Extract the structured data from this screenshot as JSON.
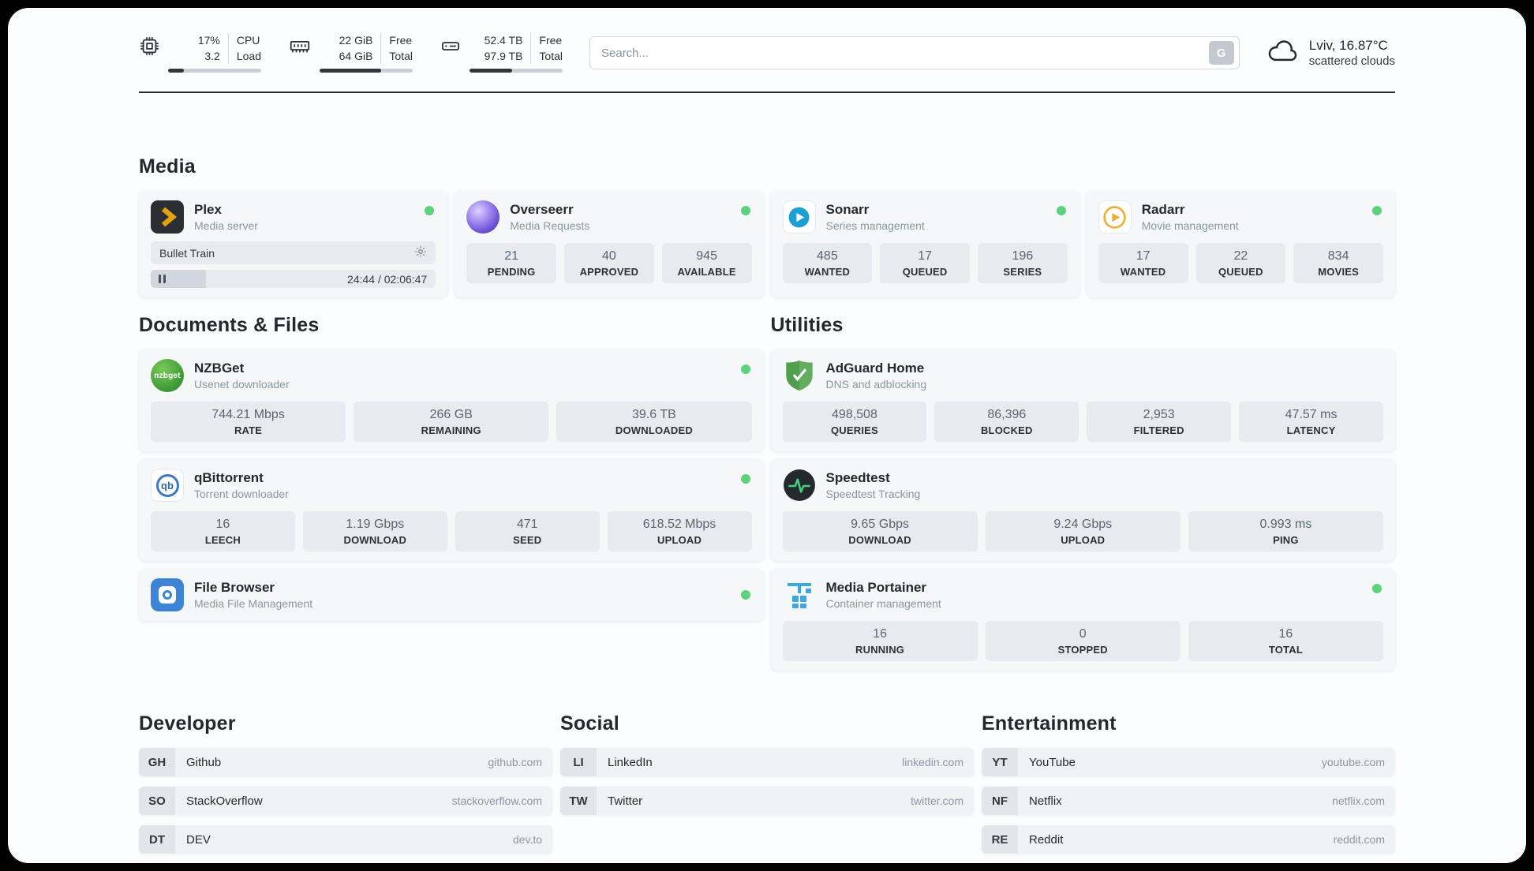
{
  "colors": {
    "status_online": "#5bd37d",
    "accent_dark": "#23292f",
    "card_bg": "#f5f7f9",
    "tile_bg": "#e7ebf0"
  },
  "topbar": {
    "cpu": {
      "value_top": "17%",
      "value_bottom": "3.2",
      "label_top": "CPU",
      "label_bottom": "Load",
      "bar_percent": 17
    },
    "ram": {
      "value_top": "22 GiB",
      "value_bottom": "64 GiB",
      "label_top": "Free",
      "label_bottom": "Total",
      "bar_percent": 66
    },
    "disk": {
      "value_top": "52.4 TB",
      "value_bottom": "97.9 TB",
      "label_top": "Free",
      "label_bottom": "Total",
      "bar_percent": 46
    },
    "search": {
      "placeholder": "Search...",
      "button_label": "G"
    },
    "weather": {
      "location": "Lviv, 16.87°C",
      "condition": "scattered clouds"
    }
  },
  "sections": {
    "media": "Media",
    "documents": "Documents & Files",
    "utilities": "Utilities",
    "developer": "Developer",
    "social": "Social",
    "entertainment": "Entertainment"
  },
  "apps": {
    "plex": {
      "name": "Plex",
      "subtitle": "Media server",
      "now_playing": "Bullet Train",
      "time": "24:44 / 02:06:47",
      "progress_percent": 19.5
    },
    "overseerr": {
      "name": "Overseerr",
      "subtitle": "Media Requests",
      "stats": [
        {
          "value": "21",
          "label": "PENDING"
        },
        {
          "value": "40",
          "label": "APPROVED"
        },
        {
          "value": "945",
          "label": "AVAILABLE"
        }
      ]
    },
    "sonarr": {
      "name": "Sonarr",
      "subtitle": "Series management",
      "stats": [
        {
          "value": "485",
          "label": "WANTED"
        },
        {
          "value": "17",
          "label": "QUEUED"
        },
        {
          "value": "196",
          "label": "SERIES"
        }
      ]
    },
    "radarr": {
      "name": "Radarr",
      "subtitle": "Movie management",
      "stats": [
        {
          "value": "17",
          "label": "WANTED"
        },
        {
          "value": "22",
          "label": "QUEUED"
        },
        {
          "value": "834",
          "label": "MOVIES"
        }
      ]
    },
    "nzbget": {
      "name": "NZBGet",
      "subtitle": "Usenet downloader",
      "icon_text": "nzbget",
      "stats": [
        {
          "value": "744.21 Mbps",
          "label": "RATE"
        },
        {
          "value": "266 GB",
          "label": "REMAINING"
        },
        {
          "value": "39.6 TB",
          "label": "DOWNLOADED"
        }
      ]
    },
    "qbittorrent": {
      "name": "qBittorrent",
      "subtitle": "Torrent downloader",
      "icon_text": "qb",
      "stats": [
        {
          "value": "16",
          "label": "LEECH"
        },
        {
          "value": "1.19 Gbps",
          "label": "DOWNLOAD"
        },
        {
          "value": "471",
          "label": "SEED"
        },
        {
          "value": "618.52 Mbps",
          "label": "UPLOAD"
        }
      ]
    },
    "filebrowser": {
      "name": "File Browser",
      "subtitle": "Media File Management"
    },
    "adguard": {
      "name": "AdGuard Home",
      "subtitle": "DNS and adblocking",
      "stats": [
        {
          "value": "498,508",
          "label": "QUERIES"
        },
        {
          "value": "86,396",
          "label": "BLOCKED"
        },
        {
          "value": "2,953",
          "label": "FILTERED"
        },
        {
          "value": "47.57 ms",
          "label": "LATENCY"
        }
      ]
    },
    "speedtest": {
      "name": "Speedtest",
      "subtitle": "Speedtest Tracking",
      "stats": [
        {
          "value": "9.65 Gbps",
          "label": "DOWNLOAD"
        },
        {
          "value": "9.24 Gbps",
          "label": "UPLOAD"
        },
        {
          "value": "0.993 ms",
          "label": "PING"
        }
      ]
    },
    "portainer": {
      "name": "Media Portainer",
      "subtitle": "Container management",
      "stats": [
        {
          "value": "16",
          "label": "RUNNING"
        },
        {
          "value": "0",
          "label": "STOPPED"
        },
        {
          "value": "16",
          "label": "TOTAL"
        }
      ]
    }
  },
  "links": {
    "developer": [
      {
        "abbr": "GH",
        "name": "Github",
        "url": "github.com"
      },
      {
        "abbr": "SO",
        "name": "StackOverflow",
        "url": "stackoverflow.com"
      },
      {
        "abbr": "DT",
        "name": "DEV",
        "url": "dev.to"
      }
    ],
    "social": [
      {
        "abbr": "LI",
        "name": "LinkedIn",
        "url": "linkedin.com"
      },
      {
        "abbr": "TW",
        "name": "Twitter",
        "url": "twitter.com"
      }
    ],
    "entertainment": [
      {
        "abbr": "YT",
        "name": "YouTube",
        "url": "youtube.com"
      },
      {
        "abbr": "NF",
        "name": "Netflix",
        "url": "netflix.com"
      },
      {
        "abbr": "RE",
        "name": "Reddit",
        "url": "reddit.com"
      }
    ]
  }
}
